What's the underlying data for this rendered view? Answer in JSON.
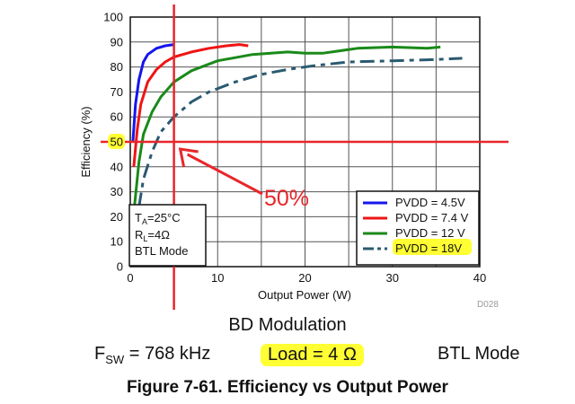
{
  "chart_data": {
    "type": "line",
    "ylabel": "Efficiency (%)",
    "xlabel": "Output Power (W)",
    "xlim": [
      0,
      40
    ],
    "ylim": [
      0,
      100
    ],
    "xticks": [
      "0",
      "10",
      "20",
      "30",
      "40"
    ],
    "yticks": [
      "0",
      "10",
      "20",
      "30",
      "40",
      "50",
      "60",
      "70",
      "80",
      "90",
      "100"
    ],
    "grid": true,
    "legend_position": "bottom-right",
    "series": [
      {
        "name": "PVDD = 4.5V",
        "color": "#1515ee",
        "style": "solid",
        "x": [
          0.3,
          0.6,
          1.0,
          1.5,
          2.0,
          3.0,
          4.0,
          5.0
        ],
        "y": [
          50,
          65,
          75,
          82,
          85,
          87.5,
          88.5,
          89
        ]
      },
      {
        "name": "PVDD = 7.4 V",
        "color": "#ee1515",
        "style": "solid",
        "x": [
          0.4,
          0.8,
          1.2,
          2.0,
          3.0,
          4.0,
          5.0,
          7.0,
          9.0,
          11.0,
          12.5,
          13.5
        ],
        "y": [
          40,
          55,
          65,
          74,
          79,
          82,
          84,
          86,
          87.5,
          88.5,
          89,
          88.5
        ]
      },
      {
        "name": "PVDD = 12 V",
        "color": "#1a8a1a",
        "style": "solid",
        "x": [
          0.5,
          1.0,
          1.5,
          2.5,
          3.5,
          5.0,
          7.0,
          10.0,
          14.0,
          18.0,
          20.0,
          22.0,
          26.0,
          30.0,
          34.0,
          35.5
        ],
        "y": [
          25,
          42,
          53,
          62,
          68,
          74,
          78.5,
          82.5,
          85,
          86,
          85.5,
          85.5,
          87.5,
          88,
          87.5,
          88
        ]
      },
      {
        "name": "PVDD = 18V",
        "color": "#2a5a70",
        "style": "dashed",
        "x": [
          1.0,
          1.5,
          2.5,
          3.5,
          5.0,
          7.0,
          9.0,
          12.0,
          15.0,
          18.0,
          21.0,
          25.0,
          30.0,
          35.0,
          38.0
        ],
        "y": [
          24,
          35,
          46,
          54,
          60,
          66,
          70,
          74,
          77,
          79,
          80.5,
          82,
          82.5,
          83,
          83.5
        ]
      }
    ],
    "markers": {
      "vertical_x": 5,
      "horizontal_y": 50,
      "color": "#e8262a"
    },
    "annotation": "50%",
    "conditions": [
      "T_A=25°C",
      "R_L=4Ω",
      "BTL Mode"
    ],
    "figure_code": "D028"
  },
  "caption": {
    "mode": "BD Modulation",
    "fsw_main": "F",
    "fsw_sub": "SW",
    "fsw_value": " = 768 kHz",
    "load": "Load = 4 Ω",
    "btl": "BTL Mode",
    "title": "Figure 7-61. Efficiency vs Output Power",
    "highlight_color": "#ffff33"
  }
}
